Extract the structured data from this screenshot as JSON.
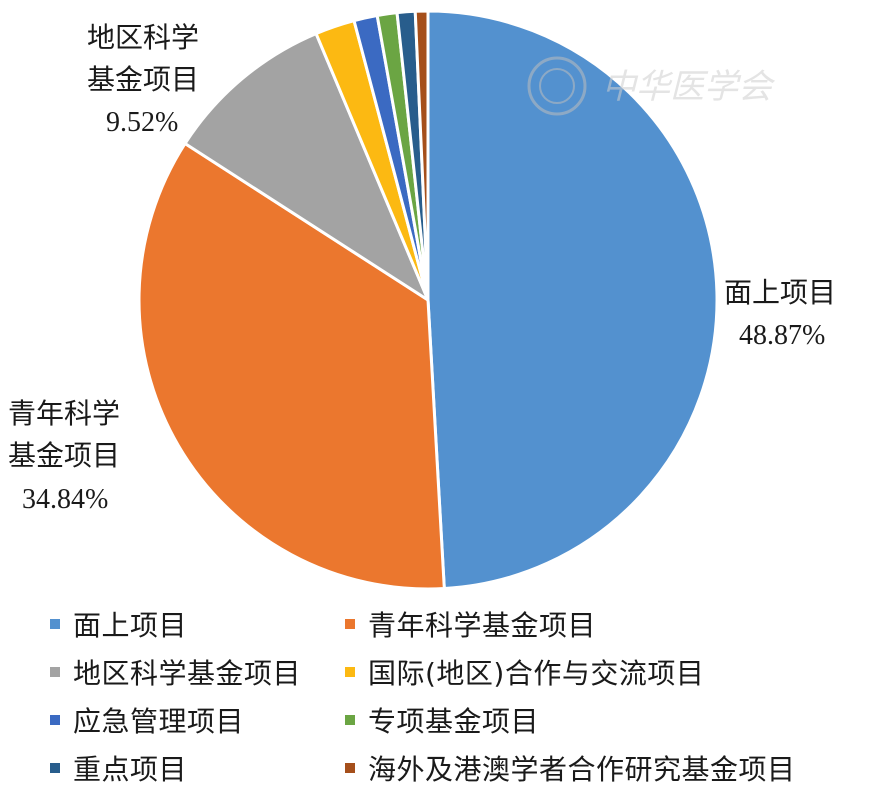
{
  "chart_data": {
    "type": "pie",
    "slices": [
      {
        "label": "面上项目",
        "value": 48.87,
        "color": "#5391cf",
        "value_label": "48.87%"
      },
      {
        "label": "青年科学基金项目",
        "value": 34.84,
        "color": "#eb772e",
        "value_label": "34.84%"
      },
      {
        "label": "地区科学基金项目",
        "value": 9.52,
        "color": "#a3a3a3",
        "value_label": "9.52%"
      },
      {
        "label": "国际(地区)合作与交流项目",
        "value": 2.2,
        "color": "#fcb912",
        "value_label": ""
      },
      {
        "label": "应急管理项目",
        "value": 1.3,
        "color": "#3b6ac2",
        "value_label": ""
      },
      {
        "label": "专项基金项目",
        "value": 1.1,
        "color": "#6ba543",
        "value_label": ""
      },
      {
        "label": "重点项目",
        "value": 1.0,
        "color": "#285d8c",
        "value_label": ""
      },
      {
        "label": "海外及港澳学者合作研究基金项目",
        "value": 0.7,
        "color": "#a54f1b",
        "value_label": ""
      }
    ],
    "slice_labels": {
      "mianshang": [
        "面上项目",
        "48.87%"
      ],
      "qingnian": [
        "青年科学",
        "基金项目",
        "34.84%"
      ],
      "diqu": [
        "地区科学",
        "基金项目",
        "9.52%"
      ]
    },
    "legend": [
      [
        {
          "label": "面上项目",
          "color": "#5391cf"
        },
        {
          "label": "青年科学基金项目",
          "color": "#eb772e"
        }
      ],
      [
        {
          "label": "地区科学基金项目",
          "color": "#a3a3a3"
        },
        {
          "label": "国际(地区)合作与交流项目",
          "color": "#fcb912"
        }
      ],
      [
        {
          "label": "应急管理项目",
          "color": "#3b6ac2"
        },
        {
          "label": "专项基金项目",
          "color": "#6ba543"
        }
      ],
      [
        {
          "label": "重点项目",
          "color": "#285d8c"
        },
        {
          "label": "海外及港澳学者合作研究基金项目",
          "color": "#a54f1b"
        }
      ]
    ],
    "legend_position": "bottom"
  },
  "watermark": {
    "text": "中华医学会"
  }
}
